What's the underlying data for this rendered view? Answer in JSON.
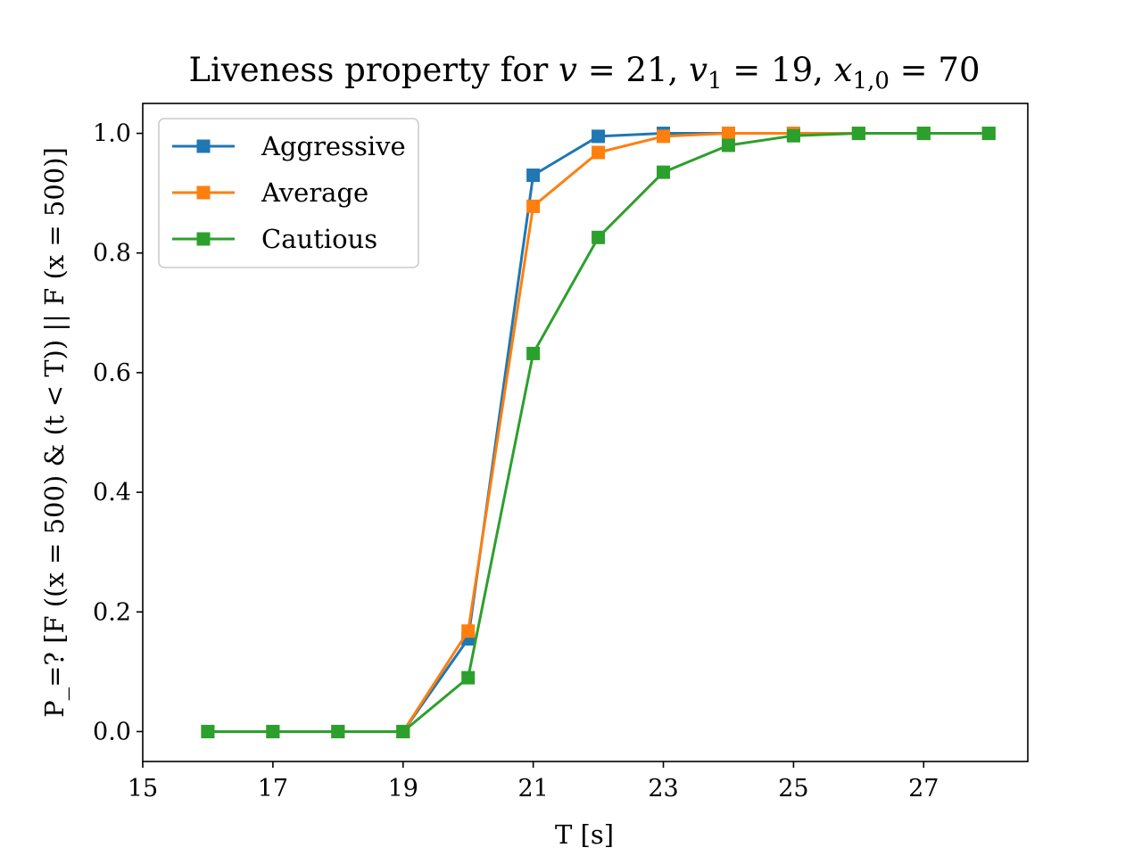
{
  "chart_data": {
    "type": "line",
    "title": {
      "prefix": "Liveness property for ",
      "var1": "v",
      "eq1": " = 21, ",
      "var2": "v",
      "sub2": "1",
      "eq2": " = 19, ",
      "var3": "x",
      "sub3": "1,0",
      "eq3": " = 70"
    },
    "xlabel": "T [s]",
    "ylabel": "P_=? [F ((x = 500) & (t < T)) || F (x = 500)]",
    "xlim": [
      15,
      28.6
    ],
    "ylim": [
      -0.05,
      1.05
    ],
    "xticks": [
      15,
      17,
      19,
      21,
      23,
      25,
      27
    ],
    "yticks": [
      0.0,
      0.2,
      0.4,
      0.6,
      0.8,
      1.0
    ],
    "xtick_labels": [
      "15",
      "17",
      "19",
      "21",
      "23",
      "25",
      "27"
    ],
    "ytick_labels": [
      "0.0",
      "0.2",
      "0.4",
      "0.6",
      "0.8",
      "1.0"
    ],
    "grid": false,
    "legend_position": "top-left",
    "marker": "square",
    "x": [
      16,
      17,
      18,
      19,
      20,
      21,
      22,
      23,
      24,
      25,
      26,
      27,
      28
    ],
    "series": [
      {
        "name": "Aggressive",
        "color": "#1f77b4",
        "values": [
          0,
          0,
          0,
          0,
          0.155,
          0.93,
          0.995,
          1.0,
          1.0,
          1.0,
          1.0,
          1.0,
          1.0
        ]
      },
      {
        "name": "Average",
        "color": "#ff7f0e",
        "values": [
          0,
          0,
          0,
          0,
          0.168,
          0.878,
          0.968,
          0.995,
          1.0,
          1.0,
          1.0,
          1.0,
          1.0
        ]
      },
      {
        "name": "Cautious",
        "color": "#2ca02c",
        "values": [
          0,
          0,
          0,
          0,
          0.09,
          0.632,
          0.826,
          0.935,
          0.98,
          0.996,
          1.0,
          1.0,
          1.0
        ]
      }
    ]
  }
}
